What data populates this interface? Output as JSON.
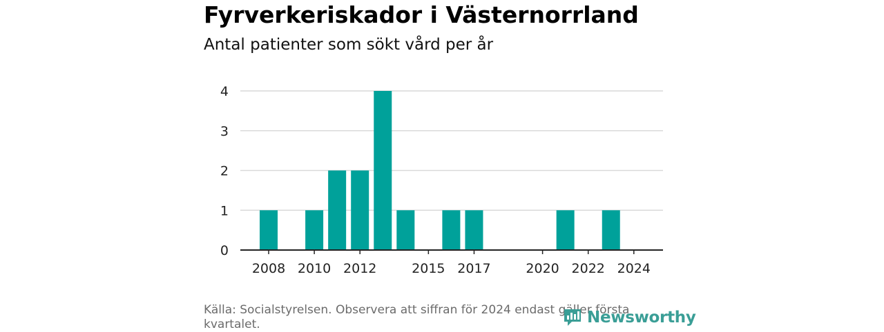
{
  "title": "Fyrverkeriskador i Västernorrland",
  "subtitle": "Antal patienter som sökt vård per år",
  "source": "Källa: Socialstyrelsen. Observera att siffran för 2024 endast gäller första kvartalet.",
  "logo": {
    "text": "Newsworthy",
    "icon": "newsworthy-logo-icon"
  },
  "colors": {
    "bar": "#00a19a",
    "grid": "#d9d9d9",
    "axis": "#222222",
    "logo": "#3a9e96"
  },
  "chart_data": {
    "type": "bar",
    "categories": [
      "2008",
      "2009",
      "2010",
      "2011",
      "2012",
      "2013",
      "2014",
      "2015",
      "2016",
      "2017",
      "2018",
      "2019",
      "2020",
      "2021",
      "2022",
      "2023",
      "2024"
    ],
    "values": [
      1,
      0,
      1,
      2,
      2,
      4,
      1,
      0,
      1,
      1,
      0,
      0,
      0,
      1,
      0,
      1,
      0
    ],
    "x_tick_labels": [
      "2008",
      "2010",
      "2012",
      "2015",
      "2017",
      "2020",
      "2022",
      "2024"
    ],
    "y_ticks": [
      0,
      1,
      2,
      3,
      4
    ],
    "ylim": [
      0,
      4
    ],
    "grid": true,
    "xlabel": "",
    "ylabel": ""
  }
}
